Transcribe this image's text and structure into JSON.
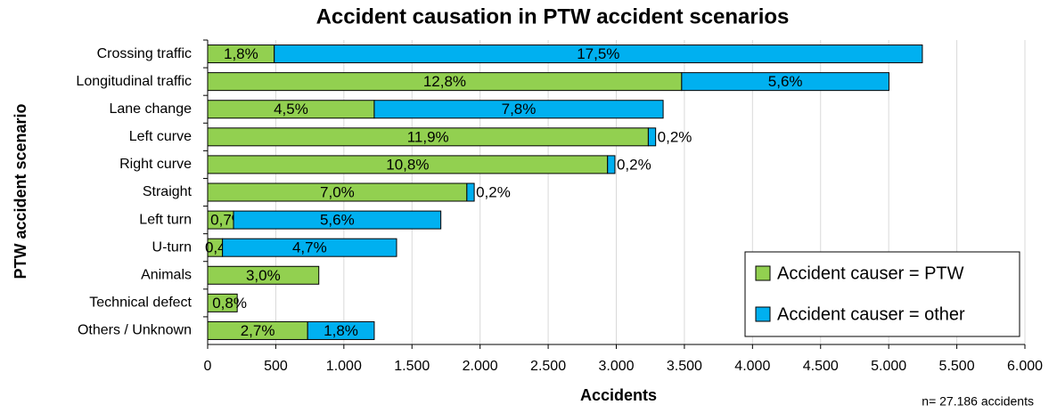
{
  "chart_data": {
    "type": "bar",
    "orientation": "horizontal",
    "stacked": true,
    "title": "Accident causation in PTW accident scenarios",
    "x_label": "Accidents",
    "y_label": "PTW accident scenario",
    "annotation": "n= 27.186 accidents",
    "categories": [
      "Crossing traffic",
      "Longitudinal traffic",
      "Lane change",
      "Left curve",
      "Right curve",
      "Straight",
      "Left turn",
      "U-turn",
      "Animals",
      "Technical defect",
      "Others / Unknown"
    ],
    "series": [
      {
        "name": "Accident causer = PTW",
        "color": "#92d050",
        "values": [
          489,
          3480,
          1223,
          3235,
          2936,
          1903,
          190,
          109,
          816,
          217,
          734
        ],
        "value_labels": [
          "1,8%",
          "12,8%",
          "4,5%",
          "11,9%",
          "10,8%",
          "7,0%",
          "0,7%",
          "0,4%",
          "3,0%",
          "0,8%",
          "2,7%"
        ]
      },
      {
        "name": "Accident causer = other",
        "color": "#00b0f0",
        "values": [
          4758,
          1522,
          2121,
          54,
          54,
          54,
          1522,
          1278,
          null,
          null,
          489
        ],
        "value_labels": [
          "17,5%",
          "5,6%",
          "7,8%",
          "0,2%",
          "0,2%",
          "0,2%",
          "5,6%",
          "4,7%",
          null,
          null,
          "1,8%"
        ]
      }
    ],
    "xlim": [
      0,
      6000
    ],
    "xticks": [
      0,
      500,
      {
        "value": 1000,
        "label": "1.000"
      },
      {
        "value": 1500,
        "label": "1.500"
      },
      {
        "value": 2000,
        "label": "2.000"
      },
      {
        "value": 2500,
        "label": "2.500"
      },
      {
        "value": 3000,
        "label": "3.000"
      },
      {
        "value": 3500,
        "label": "3.500"
      },
      {
        "value": 4000,
        "label": "4.000"
      },
      {
        "value": 4500,
        "label": "4.500"
      },
      {
        "value": 5000,
        "label": "5.000"
      },
      {
        "value": 5500,
        "label": "5.500"
      },
      {
        "value": 6000,
        "label": "6.000"
      }
    ],
    "grid": true,
    "legend": "lower right"
  }
}
